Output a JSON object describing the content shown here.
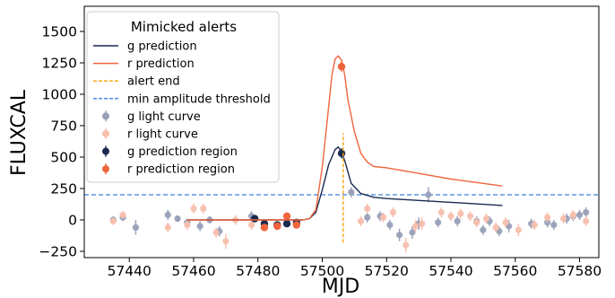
{
  "chart_data": {
    "type": "scatter",
    "xlabel": "MJD",
    "ylabel": "FLUXCAL",
    "xlim": [
      57426,
      57586
    ],
    "ylim": [
      -300,
      1700
    ],
    "xticks": [
      57440,
      57460,
      57480,
      57500,
      57520,
      57540,
      57560,
      57580
    ],
    "yticks": [
      -250,
      0,
      250,
      500,
      750,
      1000,
      1250,
      1500
    ],
    "legend": {
      "title": "Mimicked alerts",
      "placement": "top-left",
      "entries": [
        {
          "label": "g prediction",
          "kind": "line",
          "color": "#1a2a4f"
        },
        {
          "label": "r prediction",
          "kind": "line",
          "color": "#f0643c"
        },
        {
          "label": "alert end",
          "kind": "dashed-line",
          "color": "#f5a200"
        },
        {
          "label": "min amplitude threshold",
          "kind": "dashed-line",
          "color": "#3b80dc"
        },
        {
          "label": "g light curve",
          "kind": "point",
          "color": "#98a0b8"
        },
        {
          "label": "r light curve",
          "kind": "point",
          "color": "#f8bfae"
        },
        {
          "label": "g  prediction region",
          "kind": "point",
          "color": "#1a2a4f"
        },
        {
          "label": "r  prediction region",
          "kind": "point",
          "color": "#f0643c"
        }
      ]
    },
    "threshold_y": 200,
    "alert_end_x": 57506.5,
    "alert_end_yrange": [
      -180,
      690
    ],
    "series": [
      {
        "name": "g prediction",
        "kind": "line",
        "color": "#1a2a4f",
        "x": [
          57458,
          57480,
          57494,
          57496,
          57498,
          57500,
          57502,
          57504,
          57505,
          57506,
          57507,
          57508,
          57509,
          57512,
          57516,
          57520,
          57530,
          57540,
          57556
        ],
        "y": [
          0,
          0,
          0,
          10,
          60,
          240,
          440,
          560,
          580,
          540,
          470,
          380,
          290,
          210,
          180,
          170,
          155,
          140,
          115
        ]
      },
      {
        "name": "r prediction",
        "kind": "line",
        "color": "#f0643c",
        "x": [
          57458,
          57480,
          57494,
          57496,
          57498,
          57500,
          57502,
          57503,
          57504,
          57505,
          57506,
          57507,
          57508,
          57510,
          57512,
          57514,
          57516,
          57520,
          57530,
          57540,
          57556
        ],
        "y": [
          0,
          0,
          0,
          10,
          80,
          420,
          900,
          1150,
          1280,
          1305,
          1270,
          1150,
          950,
          700,
          530,
          460,
          425,
          415,
          370,
          325,
          270
        ]
      },
      {
        "name": "g light curve",
        "kind": "errorbar",
        "color": "#98a0b8",
        "x": [
          57435,
          57438,
          57442,
          57452,
          57455,
          57458,
          57462,
          57465,
          57468,
          57478,
          57509,
          57514,
          57518,
          57521,
          57524,
          57528,
          57530,
          57533,
          57536,
          57542,
          57548,
          57550,
          57552,
          57555,
          57558,
          57565,
          57570,
          57572,
          57576,
          57578,
          57580,
          57582
        ],
        "y": [
          0,
          20,
          -60,
          40,
          10,
          -20,
          -50,
          0,
          -90,
          30,
          220,
          20,
          30,
          -40,
          -120,
          -100,
          -30,
          200,
          -20,
          -10,
          -10,
          -80,
          -10,
          -90,
          -50,
          -30,
          -20,
          -40,
          10,
          30,
          40,
          60
        ],
        "err": [
          30,
          30,
          60,
          40,
          25,
          30,
          40,
          30,
          40,
          40,
          40,
          40,
          40,
          40,
          50,
          50,
          50,
          60,
          40,
          40,
          40,
          40,
          40,
          40,
          50,
          40,
          40,
          40,
          40,
          40,
          40,
          40
        ]
      },
      {
        "name": "r light curve",
        "kind": "errorbar",
        "color": "#f8bfae",
        "x": [
          57435,
          57438,
          57452,
          57458,
          57460,
          57463,
          57467,
          57470,
          57473,
          57478,
          57512,
          57514,
          57519,
          57522,
          57526,
          57529,
          57531,
          57537,
          57540,
          57543,
          57546,
          57548,
          57551,
          57554,
          57557,
          57561,
          57566,
          57570,
          57575,
          57578,
          57582
        ],
        "y": [
          -10,
          40,
          -60,
          -40,
          90,
          90,
          -100,
          -170,
          0,
          -40,
          -10,
          90,
          20,
          60,
          -200,
          -50,
          -30,
          60,
          30,
          50,
          30,
          -20,
          10,
          -60,
          -20,
          -80,
          -40,
          20,
          10,
          40,
          -10
        ],
        "err": [
          30,
          30,
          40,
          40,
          40,
          40,
          40,
          60,
          40,
          40,
          40,
          40,
          40,
          40,
          60,
          50,
          50,
          40,
          40,
          40,
          40,
          40,
          40,
          40,
          40,
          50,
          40,
          40,
          40,
          40,
          40
        ]
      },
      {
        "name": "g  prediction region",
        "kind": "errorbar",
        "color": "#1a2a4f",
        "x": [
          57479,
          57482,
          57486,
          57489,
          57492,
          57506
        ],
        "y": [
          10,
          -30,
          -40,
          -30,
          -20,
          530
        ],
        "err": [
          25,
          25,
          25,
          25,
          25,
          40
        ]
      },
      {
        "name": "r  prediction region",
        "kind": "errorbar",
        "color": "#f0643c",
        "x": [
          57482,
          57486,
          57489,
          57492,
          57506
        ],
        "y": [
          -60,
          -50,
          30,
          -40,
          1220
        ],
        "err": [
          25,
          25,
          25,
          25,
          40
        ]
      }
    ]
  }
}
